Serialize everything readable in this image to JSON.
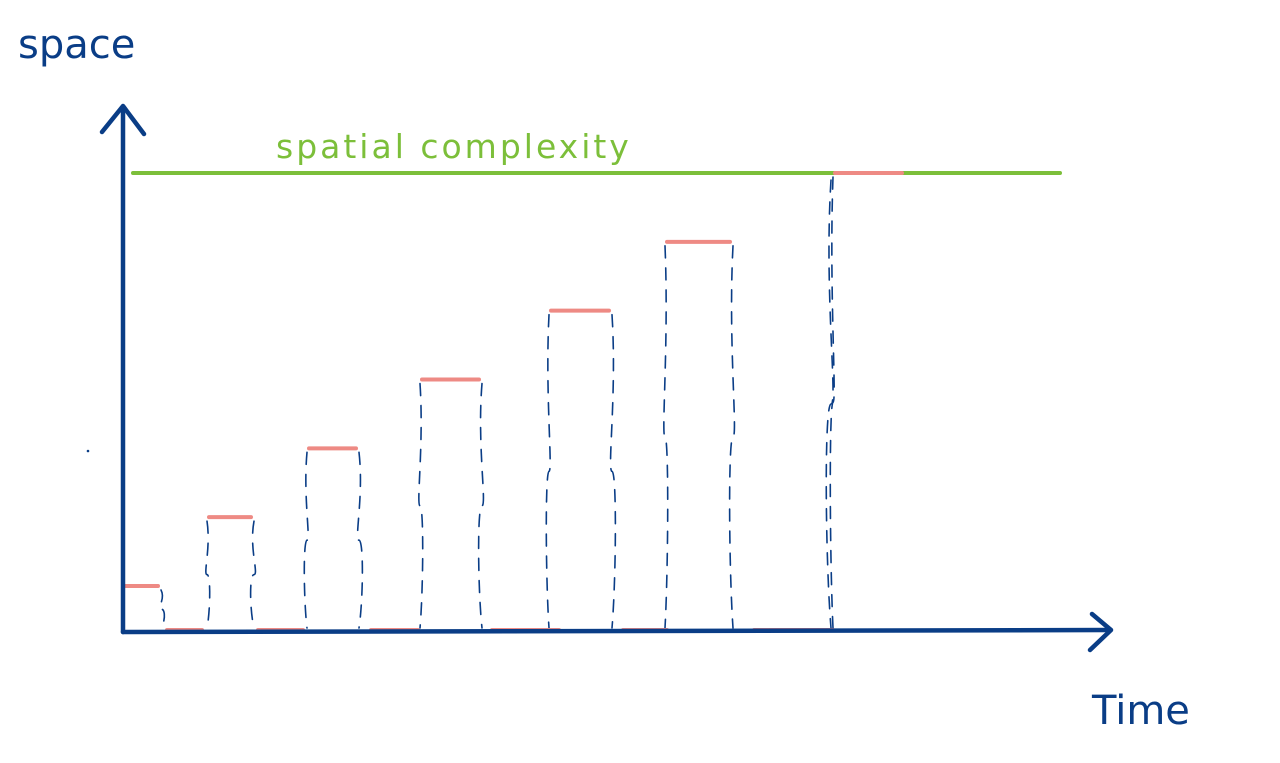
{
  "labels": {
    "y_axis": "space",
    "x_axis": "Time",
    "limit_line": "spatial  complexity"
  },
  "colors": {
    "axis": "#0a3d86",
    "limit": "#7cbf3a",
    "usage": "#ee8a84",
    "guide": "#0a3d86"
  },
  "chart_data": {
    "type": "diagram",
    "y_label": "space",
    "x_label": "Time",
    "limit_label": "spatial  complexity",
    "peak_levels": [
      1,
      2,
      3,
      4,
      5,
      6,
      7
    ],
    "limit_level": 7
  }
}
